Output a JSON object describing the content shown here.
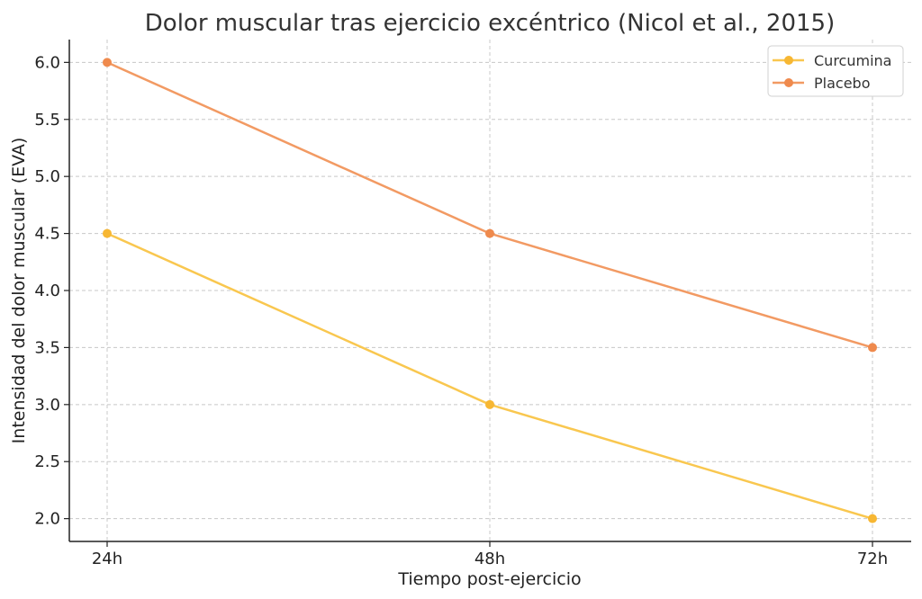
{
  "chart_data": {
    "type": "line",
    "title": "Dolor muscular tras ejercicio excéntrico (Nicol et al., 2015)",
    "xlabel": "Tiempo post-ejercicio",
    "ylabel": "Intensidad del dolor muscular (EVA)",
    "categories": [
      "24h",
      "48h",
      "72h"
    ],
    "series": [
      {
        "name": "Curcumina",
        "values": [
          4.5,
          3.0,
          2.0
        ],
        "color": "#f9c74f",
        "marker_color": "#f7b733"
      },
      {
        "name": "Placebo",
        "values": [
          6.0,
          4.5,
          3.5
        ],
        "color": "#f29a63",
        "marker_color": "#ef8a4d"
      }
    ],
    "ylim": [
      1.8,
      6.2
    ],
    "yticks": [
      2.0,
      2.5,
      3.0,
      3.5,
      4.0,
      4.5,
      5.0,
      5.5,
      6.0
    ],
    "ytick_labels": [
      "2.0",
      "2.5",
      "3.0",
      "3.5",
      "4.0",
      "4.5",
      "5.0",
      "5.5",
      "6.0"
    ],
    "grid": true,
    "legend_position": "top-right"
  }
}
